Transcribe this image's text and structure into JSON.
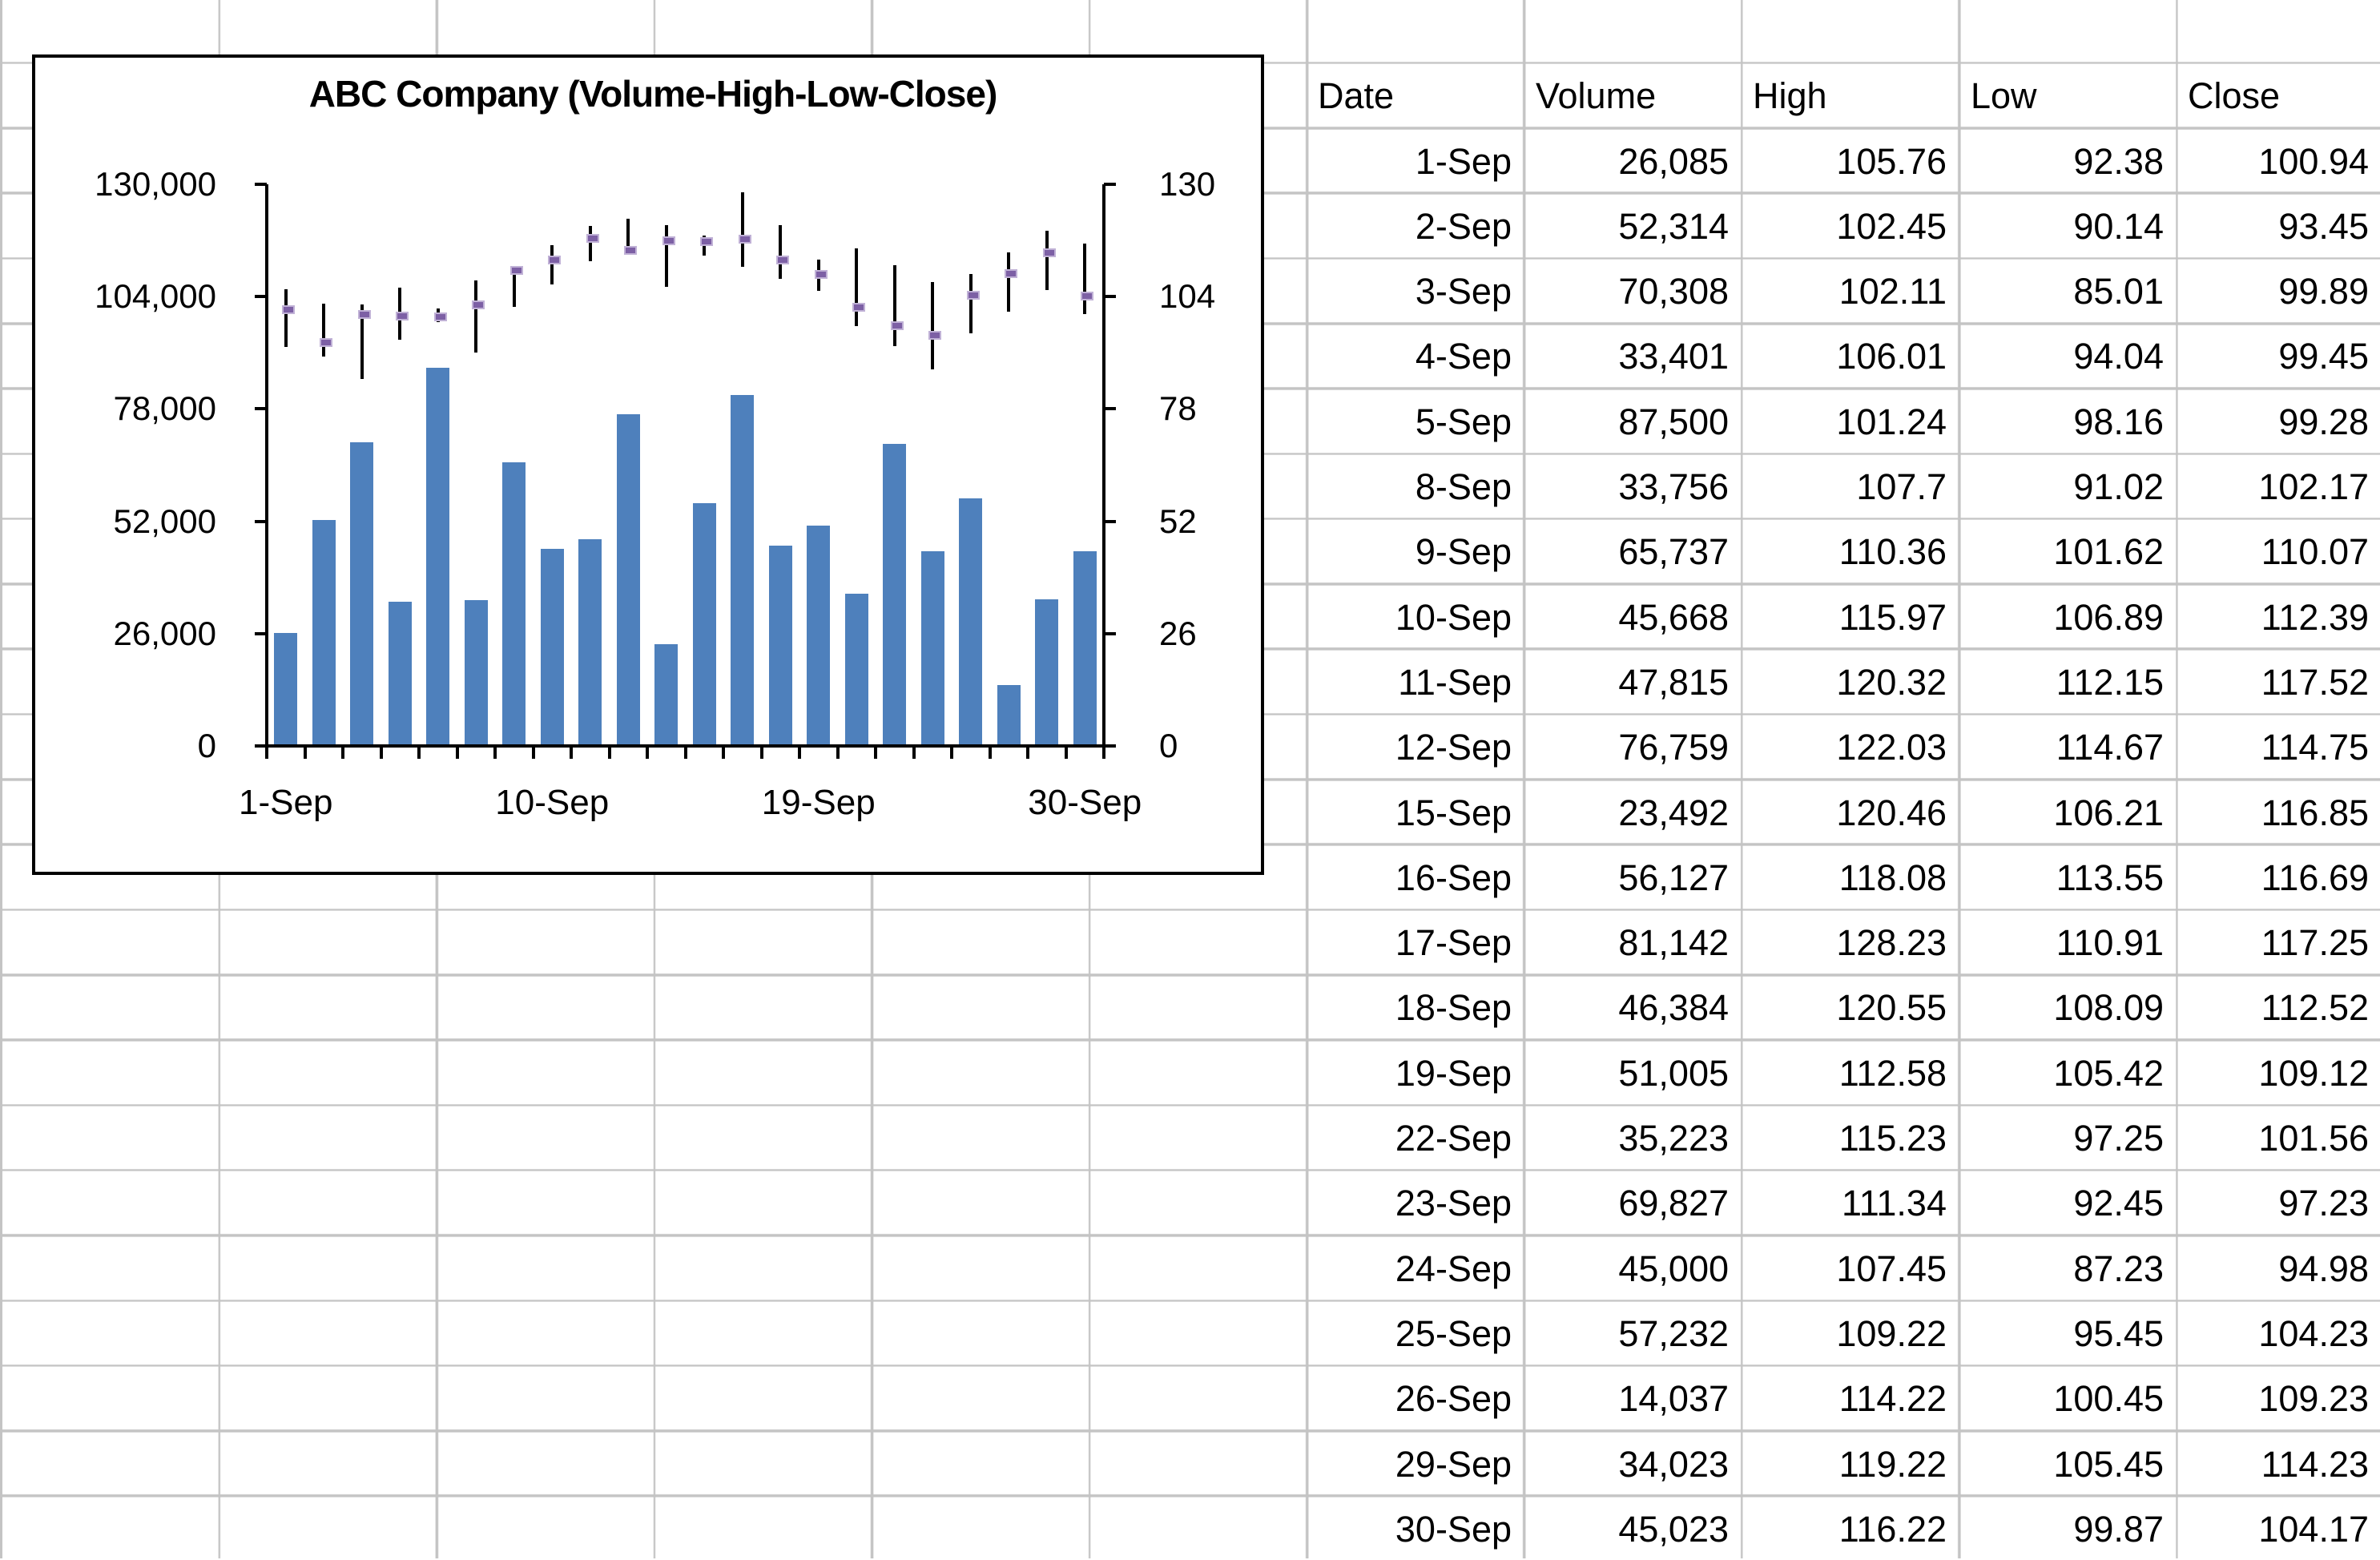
{
  "sheet": {
    "gridline_color": "#c4c4c4"
  },
  "chart_data": {
    "type": "bar",
    "subtype": "volume-high-low-close-combo",
    "title": "ABC Company (Volume-High-Low-Close)",
    "categories": [
      "1-Sep",
      "2-Sep",
      "3-Sep",
      "4-Sep",
      "5-Sep",
      "8-Sep",
      "9-Sep",
      "10-Sep",
      "11-Sep",
      "12-Sep",
      "15-Sep",
      "16-Sep",
      "17-Sep",
      "18-Sep",
      "19-Sep",
      "22-Sep",
      "23-Sep",
      "24-Sep",
      "25-Sep",
      "26-Sep",
      "29-Sep",
      "30-Sep"
    ],
    "series": [
      {
        "name": "Volume",
        "type": "bar",
        "axis": "left",
        "values": [
          26085,
          52314,
          70308,
          33401,
          87500,
          33756,
          65737,
          45668,
          47815,
          76759,
          23492,
          56127,
          81142,
          46384,
          51005,
          35223,
          69827,
          45000,
          57232,
          14037,
          34023,
          45023
        ]
      },
      {
        "name": "High",
        "type": "hlc-high",
        "axis": "right",
        "values": [
          105.76,
          102.45,
          102.11,
          106.01,
          101.24,
          107.7,
          110.36,
          115.97,
          120.32,
          122.03,
          120.46,
          118.08,
          128.23,
          120.55,
          112.58,
          115.23,
          111.34,
          107.45,
          109.22,
          114.22,
          119.22,
          116.22
        ]
      },
      {
        "name": "Low",
        "type": "hlc-low",
        "axis": "right",
        "values": [
          92.38,
          90.14,
          85.01,
          94.04,
          98.16,
          91.02,
          101.62,
          106.89,
          112.15,
          114.67,
          106.21,
          113.55,
          110.91,
          108.09,
          105.42,
          97.25,
          92.45,
          87.23,
          95.45,
          100.45,
          105.45,
          99.87
        ]
      },
      {
        "name": "Close",
        "type": "hlc-close",
        "axis": "right",
        "values": [
          100.94,
          93.45,
          99.89,
          99.45,
          99.28,
          102.17,
          110.07,
          112.39,
          117.52,
          114.75,
          116.85,
          116.69,
          117.25,
          112.52,
          109.12,
          101.56,
          97.23,
          94.98,
          104.23,
          109.23,
          114.23,
          104.17
        ]
      }
    ],
    "left_axis": {
      "min": 0,
      "max": 130000,
      "tick_labels_top_down": [
        "130,000",
        "104,000",
        "78,000",
        "52,000",
        "26,000",
        "0"
      ]
    },
    "right_axis": {
      "min": 0,
      "max": 130,
      "tick_labels_top_down": [
        "130",
        "104",
        "78",
        "52",
        "26",
        "0"
      ]
    },
    "x_tick_labels": [
      "1-Sep",
      "10-Sep",
      "19-Sep",
      "30-Sep"
    ],
    "x_tick_indices": [
      0,
      7,
      14,
      21
    ],
    "grid": "off",
    "legend": "none",
    "colors": {
      "bar_fill": "#4e80bc",
      "hl_line": "#000000",
      "close_fill": "#7d60a5",
      "close_border": "#c0b1d6"
    }
  },
  "table": {
    "headers": [
      "Date",
      "Volume",
      "High",
      "Low",
      "Close"
    ],
    "rows": [
      [
        "1-Sep",
        "26,085",
        "105.76",
        "92.38",
        "100.94"
      ],
      [
        "2-Sep",
        "52,314",
        "102.45",
        "90.14",
        "93.45"
      ],
      [
        "3-Sep",
        "70,308",
        "102.11",
        "85.01",
        "99.89"
      ],
      [
        "4-Sep",
        "33,401",
        "106.01",
        "94.04",
        "99.45"
      ],
      [
        "5-Sep",
        "87,500",
        "101.24",
        "98.16",
        "99.28"
      ],
      [
        "8-Sep",
        "33,756",
        "107.7",
        "91.02",
        "102.17"
      ],
      [
        "9-Sep",
        "65,737",
        "110.36",
        "101.62",
        "110.07"
      ],
      [
        "10-Sep",
        "45,668",
        "115.97",
        "106.89",
        "112.39"
      ],
      [
        "11-Sep",
        "47,815",
        "120.32",
        "112.15",
        "117.52"
      ],
      [
        "12-Sep",
        "76,759",
        "122.03",
        "114.67",
        "114.75"
      ],
      [
        "15-Sep",
        "23,492",
        "120.46",
        "106.21",
        "116.85"
      ],
      [
        "16-Sep",
        "56,127",
        "118.08",
        "113.55",
        "116.69"
      ],
      [
        "17-Sep",
        "81,142",
        "128.23",
        "110.91",
        "117.25"
      ],
      [
        "18-Sep",
        "46,384",
        "120.55",
        "108.09",
        "112.52"
      ],
      [
        "19-Sep",
        "51,005",
        "112.58",
        "105.42",
        "109.12"
      ],
      [
        "22-Sep",
        "35,223",
        "115.23",
        "97.25",
        "101.56"
      ],
      [
        "23-Sep",
        "69,827",
        "111.34",
        "92.45",
        "97.23"
      ],
      [
        "24-Sep",
        "45,000",
        "107.45",
        "87.23",
        "94.98"
      ],
      [
        "25-Sep",
        "57,232",
        "109.22",
        "95.45",
        "104.23"
      ],
      [
        "26-Sep",
        "14,037",
        "114.22",
        "100.45",
        "109.23"
      ],
      [
        "29-Sep",
        "34,023",
        "119.22",
        "105.45",
        "114.23"
      ],
      [
        "30-Sep",
        "45,023",
        "116.22",
        "99.87",
        "104.17"
      ]
    ]
  }
}
